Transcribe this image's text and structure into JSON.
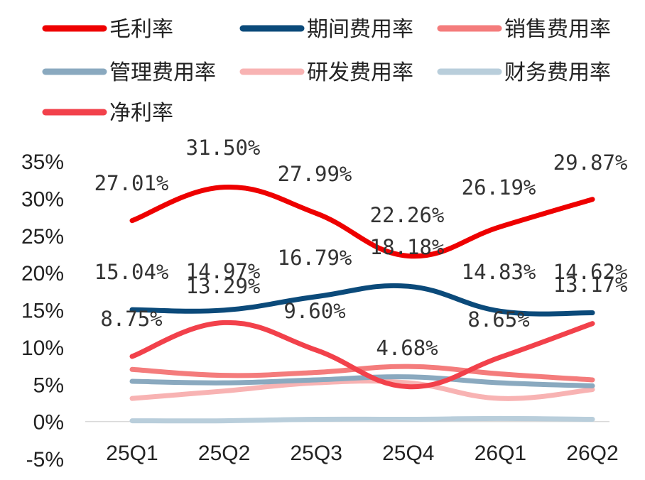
{
  "chart_data": {
    "type": "line",
    "categories": [
      "25Q1",
      "25Q2",
      "25Q3",
      "25Q4",
      "26Q1",
      "26Q2"
    ],
    "ylim": [
      -5,
      35
    ],
    "yticks": [
      -5,
      0,
      5,
      10,
      15,
      20,
      25,
      30,
      35
    ],
    "ytick_labels": [
      "-5%",
      "0%",
      "5%",
      "10%",
      "15%",
      "20%",
      "25%",
      "30%",
      "35%"
    ],
    "grid": false,
    "legend_position": "top",
    "series": [
      {
        "name": "毛利率",
        "color": "#ee0000",
        "values": [
          27.01,
          31.5,
          27.99,
          22.26,
          26.19,
          29.87
        ],
        "labels": [
          "27.01%",
          "31.50%",
          "27.99%",
          "22.26%",
          "26.19%",
          "29.87%"
        ]
      },
      {
        "name": "期间费用率",
        "color": "#0b4a7a",
        "values": [
          15.04,
          14.97,
          16.79,
          18.18,
          14.83,
          14.62
        ],
        "labels": [
          "15.04%",
          "14.97%",
          "16.79%",
          "18.18%",
          "14.83%",
          "14.62%"
        ]
      },
      {
        "name": "销售费用率",
        "color": "#f47c7c",
        "values": [
          7.0,
          6.2,
          6.6,
          7.4,
          6.4,
          5.6
        ]
      },
      {
        "name": "管理费用率",
        "color": "#8aa9bf",
        "values": [
          5.4,
          5.2,
          5.6,
          6.0,
          5.2,
          4.8
        ]
      },
      {
        "name": "研发费用率",
        "color": "#f8b3b3",
        "values": [
          3.1,
          4.1,
          5.2,
          5.2,
          3.1,
          4.3
        ]
      },
      {
        "name": "财务费用率",
        "color": "#b9cedb",
        "values": [
          0.1,
          0.1,
          0.3,
          0.3,
          0.4,
          0.3
        ]
      },
      {
        "name": "净利率",
        "color": "#f2414b",
        "values": [
          8.75,
          13.29,
          9.6,
          4.68,
          8.65,
          13.17
        ],
        "labels": [
          "8.75%",
          "13.29%",
          "9.60%",
          "4.68%",
          "8.65%",
          "13.17%"
        ]
      }
    ]
  }
}
